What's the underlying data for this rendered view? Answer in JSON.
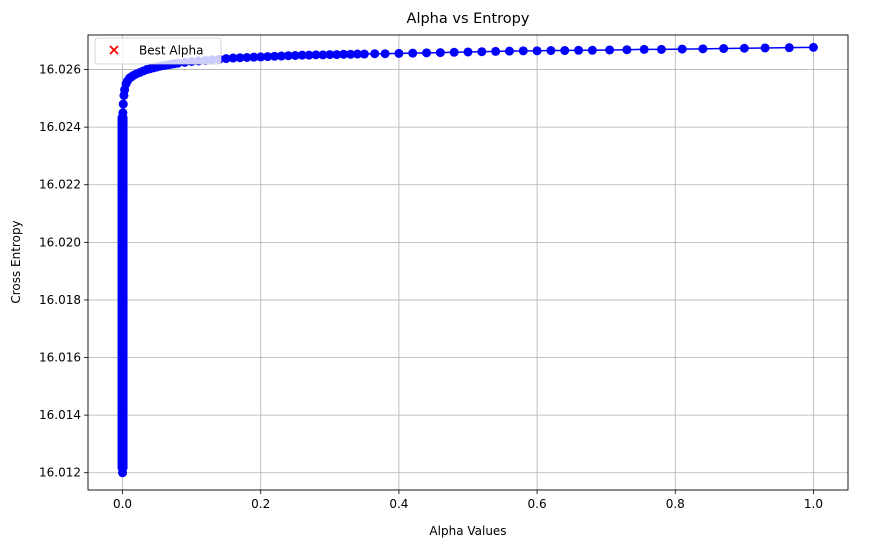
{
  "chart_data": {
    "type": "line",
    "title": "Alpha vs Entropy",
    "xlabel": "Alpha Values",
    "ylabel": "Cross Entropy",
    "xlim": [
      -0.05,
      1.05
    ],
    "ylim": [
      16.0114,
      16.0272
    ],
    "xticks": [
      0.0,
      0.2,
      0.4,
      0.6,
      0.8,
      1.0
    ],
    "xtick_labels": [
      "0.0",
      "0.2",
      "0.4",
      "0.6",
      "0.8",
      "1.0"
    ],
    "yticks": [
      16.012,
      16.014,
      16.016,
      16.018,
      16.02,
      16.022,
      16.024,
      16.026
    ],
    "ytick_labels": [
      "16.012",
      "16.014",
      "16.016",
      "16.018",
      "16.020",
      "16.022",
      "16.024",
      "16.026"
    ],
    "grid": true,
    "legend": {
      "placement": "top-left",
      "entries": [
        "Best Alpha"
      ]
    },
    "series": [
      {
        "color": "#0000ff",
        "marker": "circle",
        "x": [
          0.0,
          0.0005,
          0.001,
          0.002,
          0.003,
          0.005,
          0.007,
          0.01,
          0.013,
          0.016,
          0.02,
          0.025,
          0.03,
          0.035,
          0.04,
          0.045,
          0.05,
          0.055,
          0.06,
          0.065,
          0.07,
          0.075,
          0.08,
          0.09,
          0.1,
          0.11,
          0.12,
          0.13,
          0.14,
          0.15,
          0.16,
          0.17,
          0.18,
          0.19,
          0.2,
          0.21,
          0.22,
          0.23,
          0.24,
          0.25,
          0.26,
          0.27,
          0.28,
          0.29,
          0.3,
          0.31,
          0.32,
          0.33,
          0.34,
          0.35,
          0.365,
          0.38,
          0.4,
          0.42,
          0.44,
          0.46,
          0.48,
          0.5,
          0.52,
          0.54,
          0.56,
          0.58,
          0.6,
          0.62,
          0.64,
          0.66,
          0.68,
          0.705,
          0.73,
          0.755,
          0.78,
          0.81,
          0.84,
          0.87,
          0.9,
          0.93,
          0.965,
          1.0
        ],
        "y": [
          16.012,
          16.0245,
          16.0248,
          16.0251,
          16.0253,
          16.0255,
          16.0256,
          16.0257,
          16.02575,
          16.0258,
          16.02585,
          16.0259,
          16.02595,
          16.026,
          16.02603,
          16.02606,
          16.02609,
          16.02612,
          16.02614,
          16.02616,
          16.02618,
          16.0262,
          16.02622,
          16.02625,
          16.02628,
          16.0263,
          16.02632,
          16.02634,
          16.02636,
          16.02638,
          16.0264,
          16.02641,
          16.02642,
          16.02643,
          16.02644,
          16.02645,
          16.02646,
          16.02647,
          16.02648,
          16.02649,
          16.0265,
          16.0265,
          16.02651,
          16.02651,
          16.02652,
          16.02652,
          16.02653,
          16.02653,
          16.02654,
          16.02654,
          16.02655,
          16.02655,
          16.02656,
          16.02657,
          16.02658,
          16.02659,
          16.0266,
          16.02661,
          16.02662,
          16.02663,
          16.02664,
          16.02665,
          16.02665,
          16.02666,
          16.02666,
          16.02667,
          16.02667,
          16.02668,
          16.02669,
          16.0267,
          16.0267,
          16.02671,
          16.02672,
          16.02673,
          16.02674,
          16.02675,
          16.02676,
          16.02677
        ],
        "vertical_cluster": {
          "x": 0.0,
          "y_min": 16.012,
          "y_max": 16.0245
        }
      },
      {
        "name": "Best Alpha",
        "color": "#ff0000",
        "marker": "x",
        "x": [],
        "y": []
      }
    ]
  }
}
